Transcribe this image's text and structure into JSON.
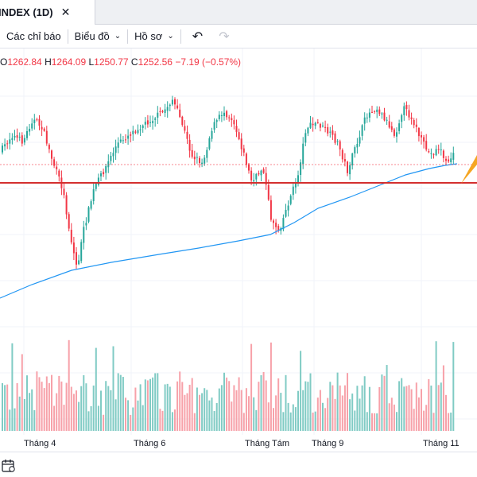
{
  "tab": {
    "title": "INDEX (1D)",
    "close_glyph": "✕"
  },
  "toolbar": {
    "indicators_label": "Các chỉ báo",
    "chart_type_label": "Biểu đồ",
    "profile_label": "Hồ sơ",
    "undo_icon": "undo-icon",
    "redo_icon": "redo-icon"
  },
  "ohlc": {
    "o_key": "O",
    "o_val": "1262.84",
    "h_key": "H",
    "h_val": "1264.09",
    "l_key": "L",
    "l_val": "1250.77",
    "c_key": "C",
    "c_val": "1252.56",
    "change": "−7.19 (−0.57%)"
  },
  "x_axis_labels": [
    "Tháng 4",
    "Tháng 6",
    "Tháng Tám",
    "Tháng 9",
    "Tháng 11"
  ],
  "colors": {
    "up": "#26a69a",
    "down": "#f23645",
    "ma": "#2196f3",
    "support_line": "#d32f2f",
    "vol_up": "#80cbc4",
    "vol_down": "#f7a1a9",
    "arrow": "#f5a623"
  },
  "chart_data": {
    "type": "candlestick",
    "symbol": "INDEX",
    "interval": "1D",
    "approx_price_range": [
      1180,
      1300
    ],
    "last_close": 1252.56,
    "support_level": 1245,
    "moving_average_end": 1262
  }
}
